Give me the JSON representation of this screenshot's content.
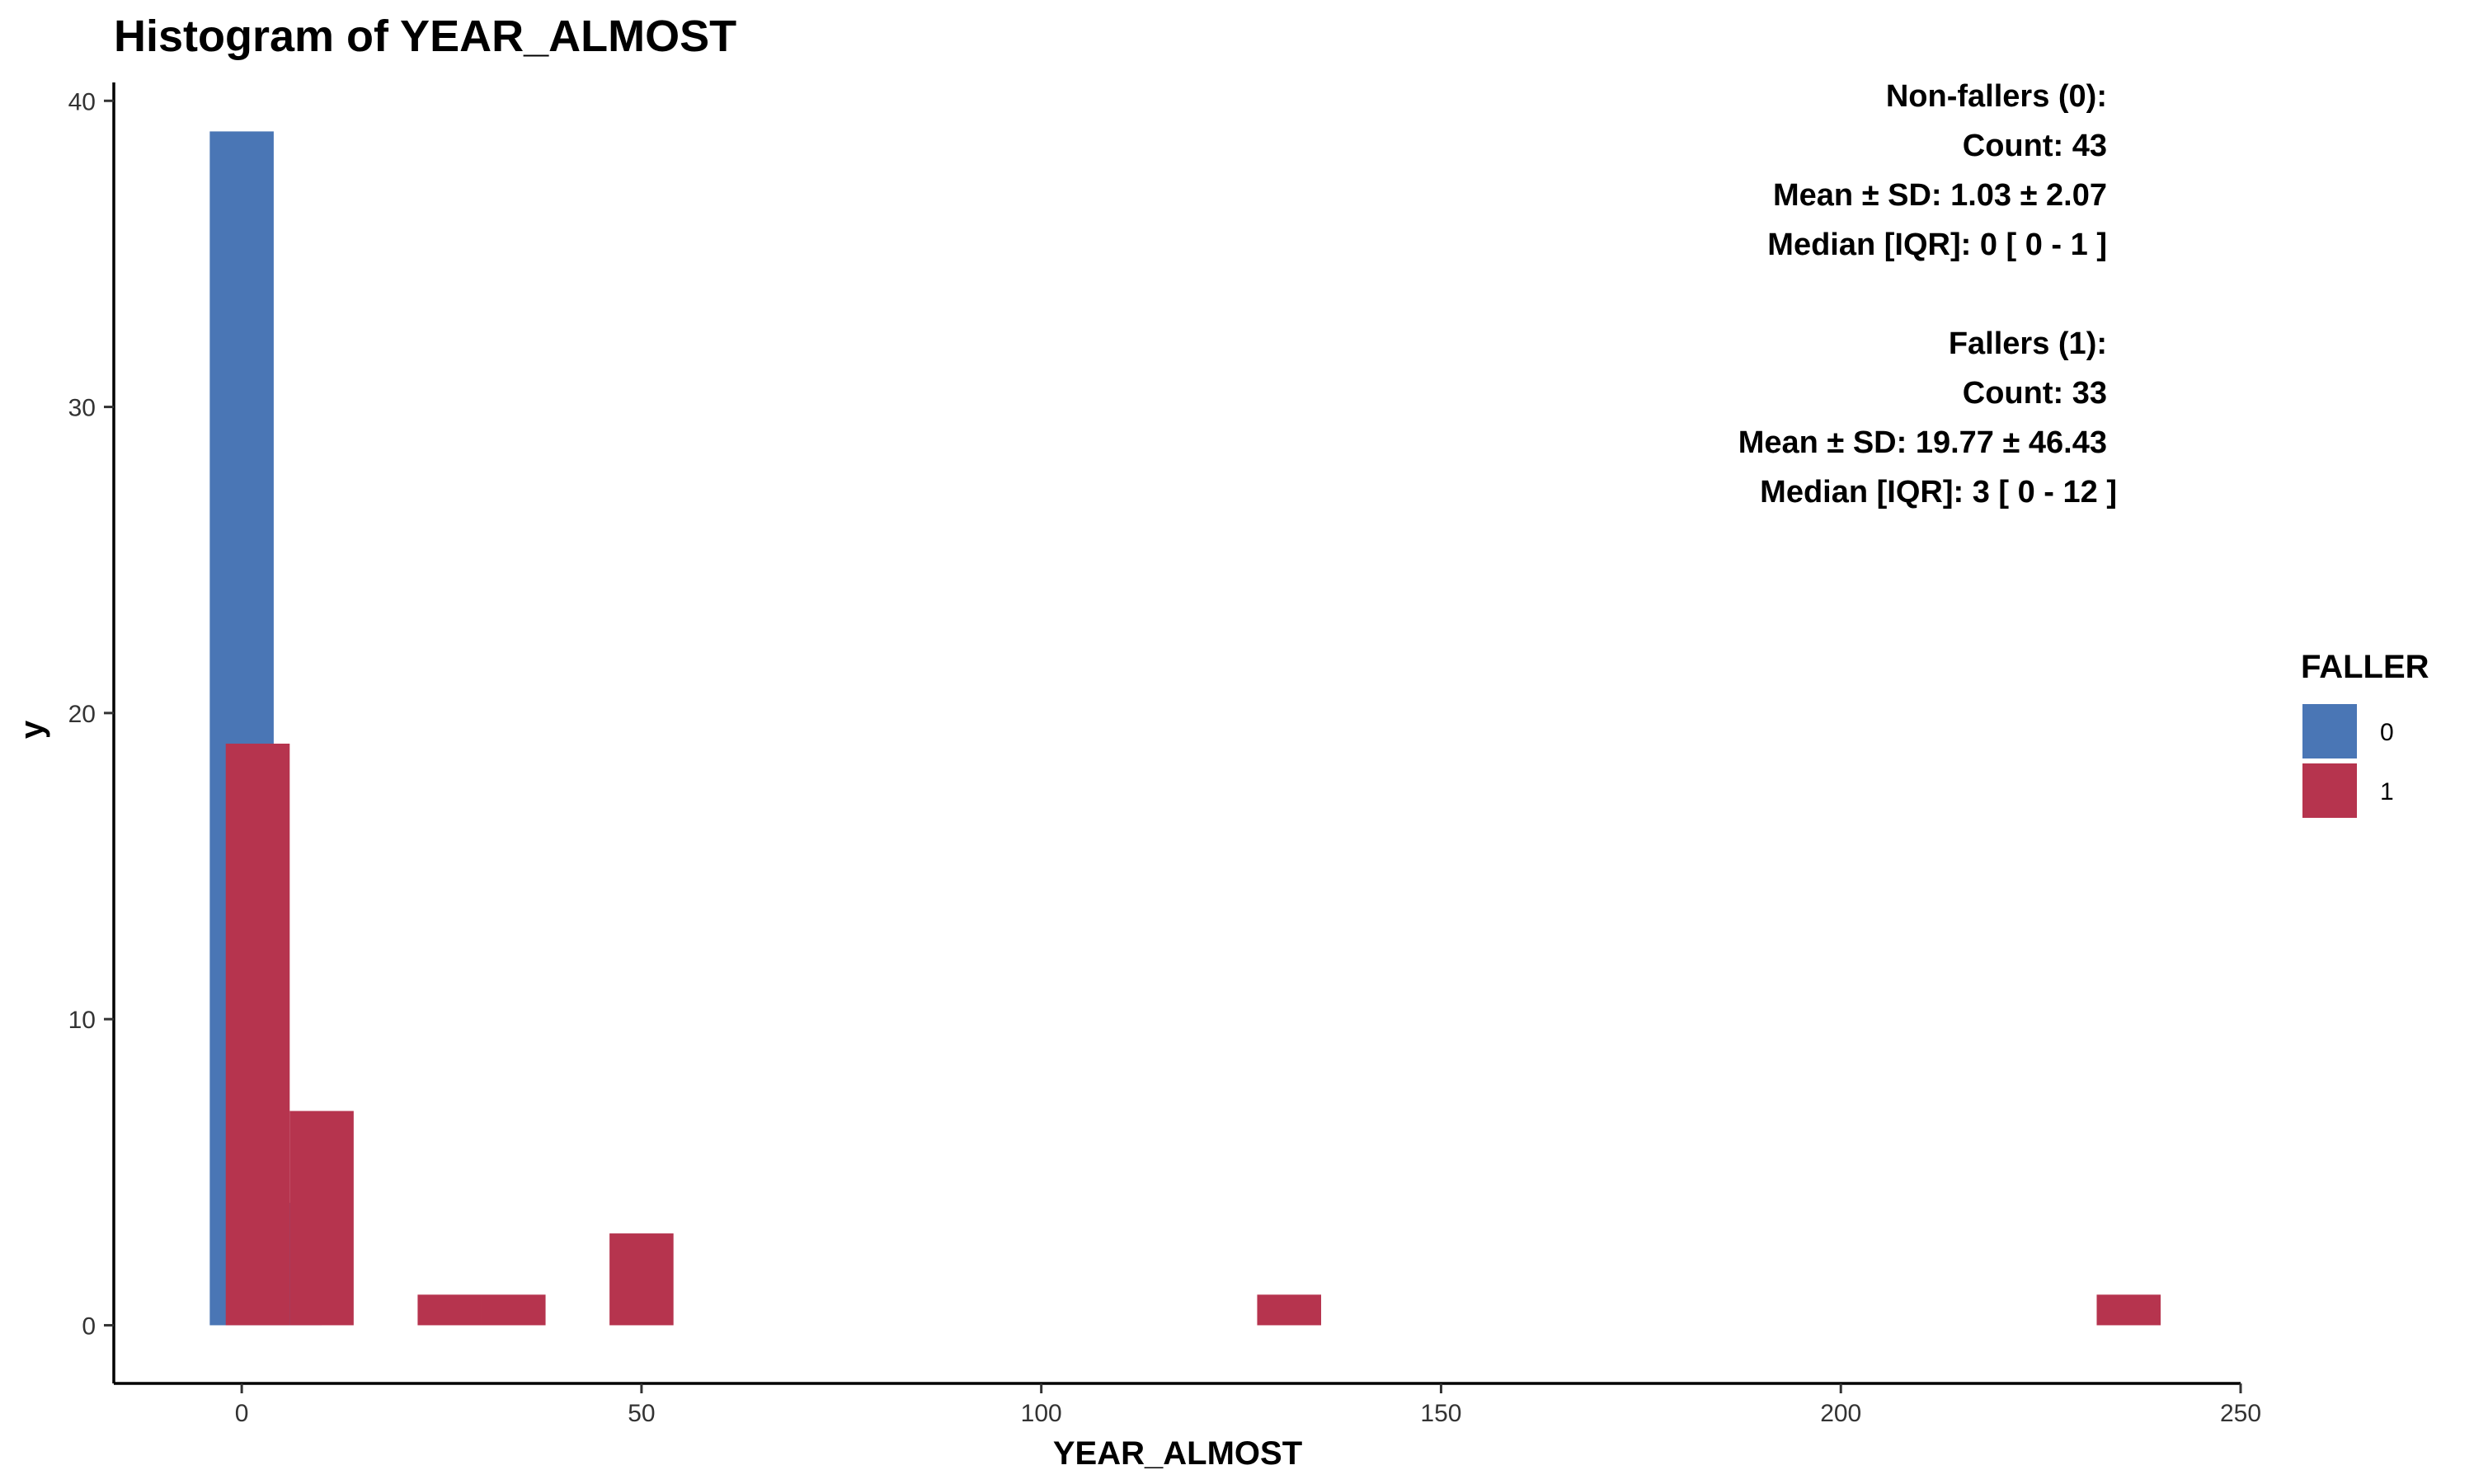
{
  "chart_data": {
    "type": "bar",
    "title": "Histogram of YEAR_ALMOST",
    "xlabel": "YEAR_ALMOST",
    "ylabel": "y",
    "xlim": [
      -16,
      250
    ],
    "ylim": [
      -1.9,
      40.6
    ],
    "x_ticks": [
      0,
      50,
      100,
      150,
      200,
      250
    ],
    "y_ticks": [
      0,
      10,
      20,
      30,
      40
    ],
    "bin_width": 8,
    "series": [
      {
        "name": "0",
        "color": "#4A76B5",
        "bars": [
          {
            "x": 0,
            "count": 39
          },
          {
            "x": 6,
            "count": 4
          }
        ]
      },
      {
        "name": "1",
        "color": "#B6344E",
        "bars": [
          {
            "x": 2,
            "count": 19
          },
          {
            "x": 10,
            "count": 7
          },
          {
            "x": 26,
            "count": 1
          },
          {
            "x": 34,
            "count": 1
          },
          {
            "x": 50,
            "count": 3
          },
          {
            "x": 131,
            "count": 1
          },
          {
            "x": 236,
            "count": 1
          }
        ]
      }
    ],
    "legend": {
      "title": "FALLER",
      "position": "right",
      "items": [
        {
          "label": "0",
          "color": "#4A76B5"
        },
        {
          "label": "1",
          "color": "#B6344E"
        }
      ]
    },
    "annotation": {
      "position": "top-right",
      "lines": [
        "Non-fallers (0):",
        "Count: 43",
        "Mean ± SD: 1.03 ± 2.07",
        "Median [IQR]: 0 [ 0 - 1 ]",
        "",
        "Fallers (1):",
        "Count: 33",
        "Mean ± SD: 19.77 ± 46.43",
        "Median [IQR]: 3 [ 0 - 12 ]"
      ]
    },
    "grid": false
  }
}
